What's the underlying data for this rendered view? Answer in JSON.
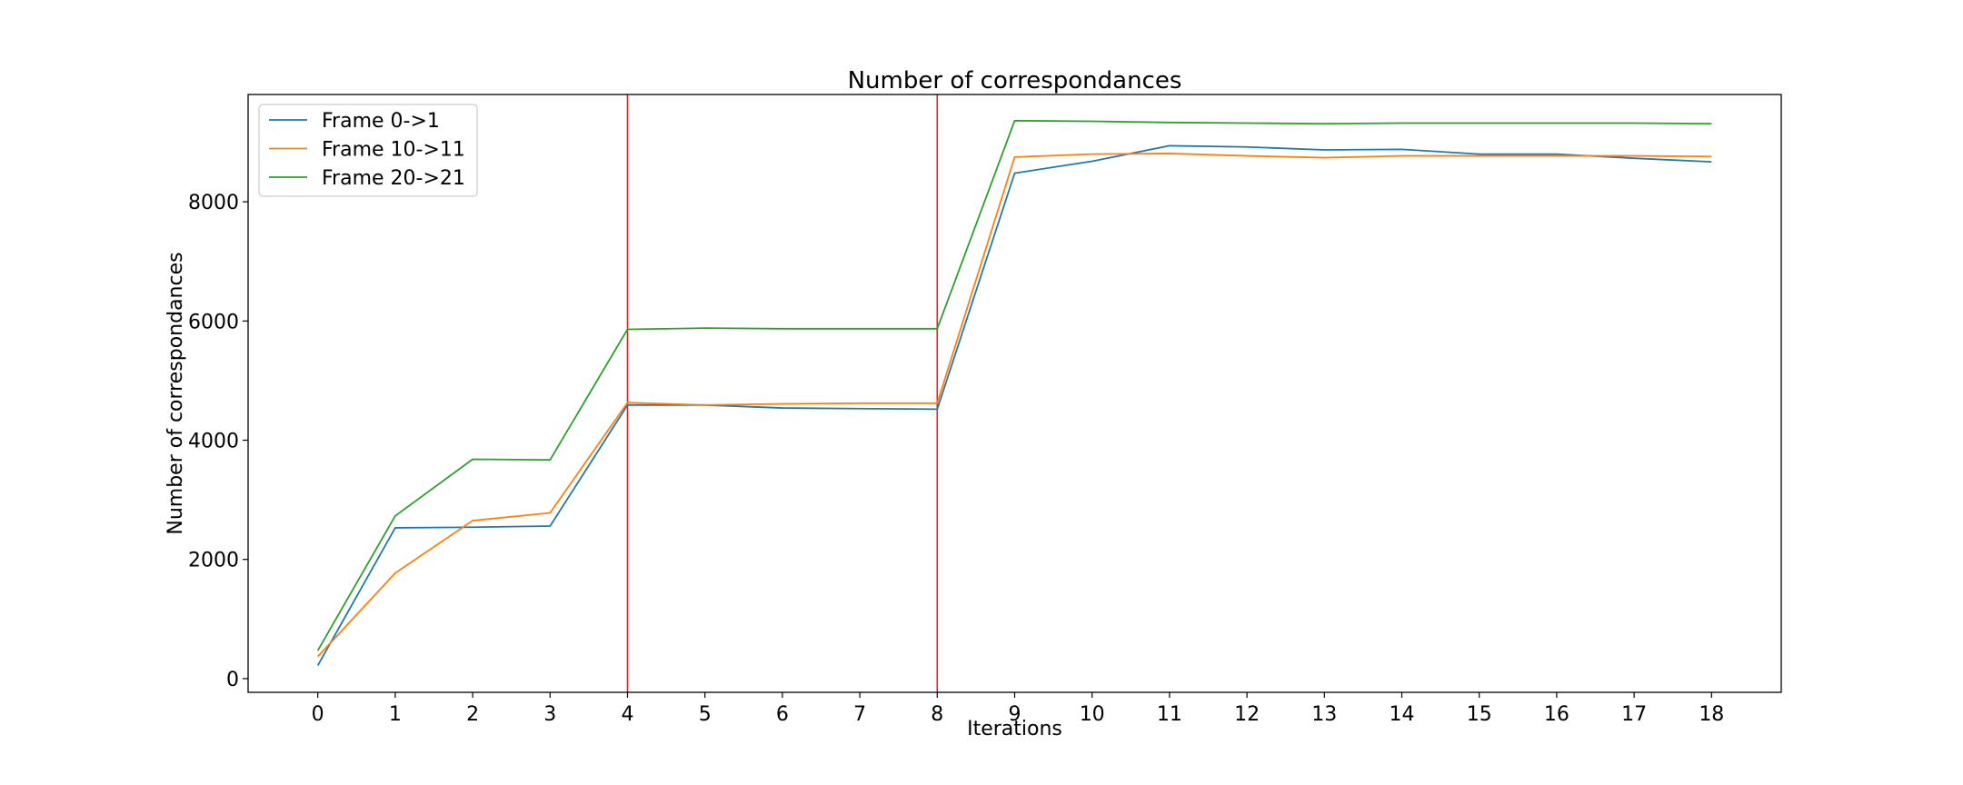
{
  "chart_data": {
    "type": "line",
    "title": "Number of correspondances",
    "xlabel": "Iterations",
    "ylabel": "Number of correspondances",
    "x": [
      0,
      1,
      2,
      3,
      4,
      5,
      6,
      7,
      8,
      9,
      10,
      11,
      12,
      13,
      14,
      15,
      16,
      17,
      18
    ],
    "xticks": [
      "0",
      "1",
      "2",
      "3",
      "4",
      "5",
      "6",
      "7",
      "8",
      "9",
      "10",
      "11",
      "12",
      "13",
      "14",
      "15",
      "16",
      "17",
      "18"
    ],
    "yticks": [
      "0",
      "2000",
      "4000",
      "6000",
      "8000"
    ],
    "xlim": [
      -0.9,
      18.9
    ],
    "ylim": [
      -230,
      9800
    ],
    "grid": false,
    "legend_position": "upper-left",
    "series": [
      {
        "name": "Frame 0->1",
        "color": "#1f77b4",
        "values": [
          220,
          2530,
          2540,
          2560,
          4590,
          4590,
          4540,
          4530,
          4520,
          8480,
          8680,
          8940,
          8920,
          8870,
          8880,
          8800,
          8800,
          8730,
          8670
        ]
      },
      {
        "name": "Frame 10->11",
        "color": "#ff7f0e",
        "values": [
          370,
          1770,
          2650,
          2780,
          4630,
          4590,
          4610,
          4620,
          4620,
          8750,
          8800,
          8810,
          8770,
          8740,
          8770,
          8770,
          8770,
          8770,
          8760
        ]
      },
      {
        "name": "Frame 20->21",
        "color": "#2ca02c",
        "values": [
          470,
          2730,
          3680,
          3670,
          5860,
          5880,
          5870,
          5870,
          5870,
          9360,
          9350,
          9330,
          9320,
          9310,
          9320,
          9320,
          9320,
          9320,
          9310
        ]
      }
    ],
    "vlines": [
      {
        "x": 4,
        "color": "#d62728"
      },
      {
        "x": 8,
        "color": "#d62728"
      }
    ]
  }
}
